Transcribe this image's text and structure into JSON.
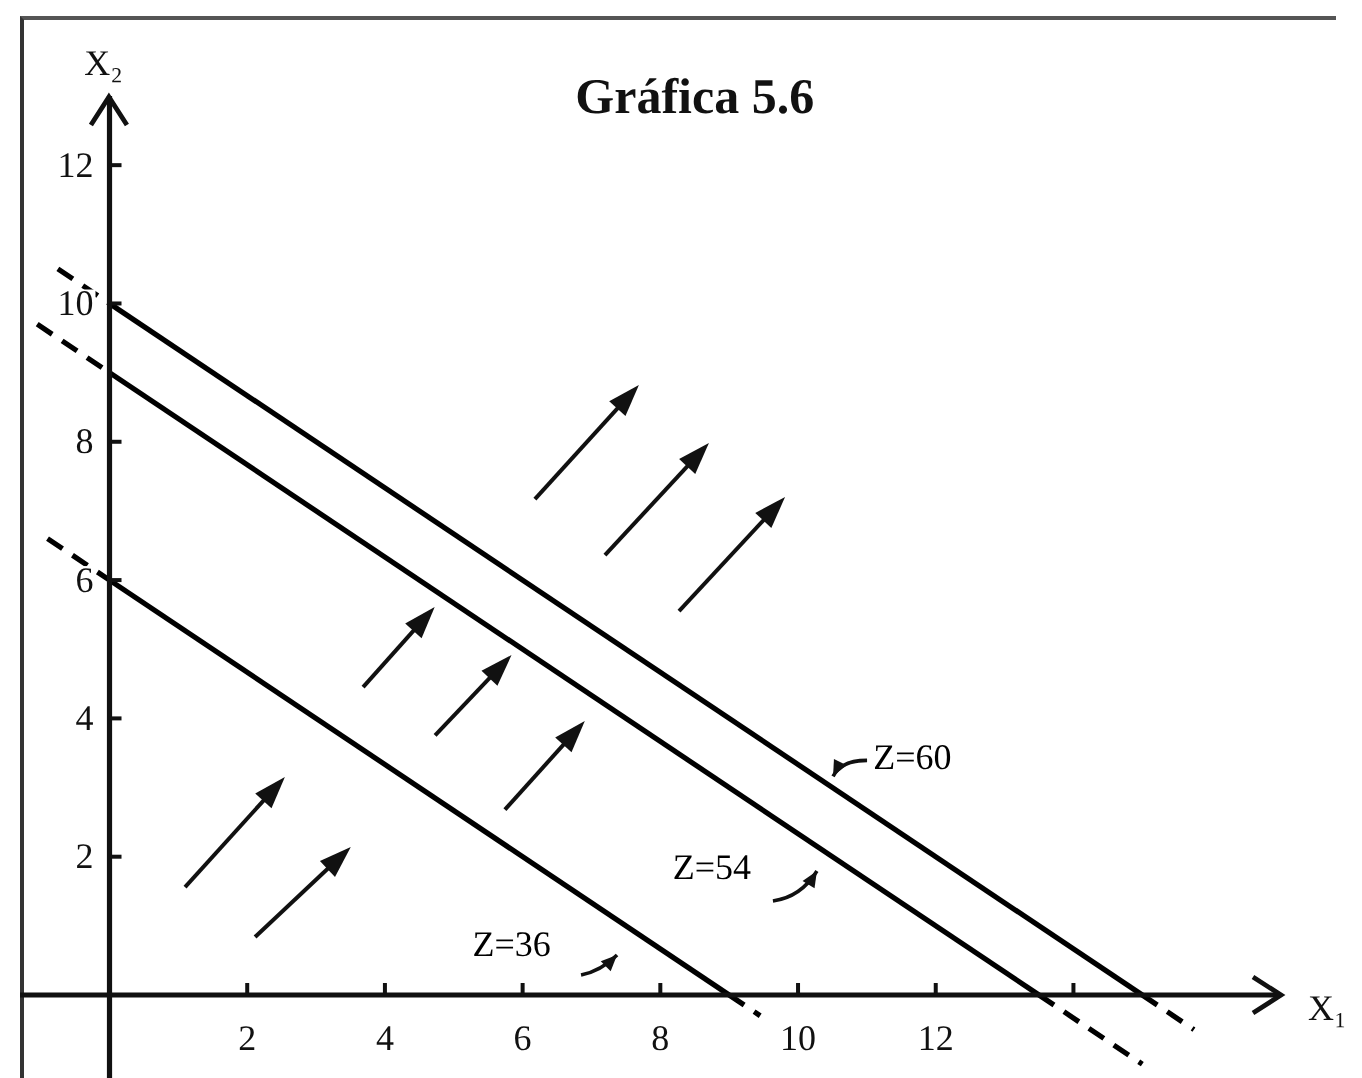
{
  "chart_data": {
    "type": "line",
    "title": "Gráfica 5.6",
    "xlabel": "X₁",
    "ylabel": "X₂",
    "series": [
      {
        "name": "Z=36",
        "color": "#000000",
        "x": [
          0,
          9
        ],
        "values": [
          6,
          0
        ]
      },
      {
        "name": "Z=54",
        "color": "#000000",
        "x": [
          0,
          13.5
        ],
        "values": [
          9,
          0
        ]
      },
      {
        "name": "Z=60",
        "color": "#000000",
        "x": [
          0,
          15
        ],
        "values": [
          10,
          0
        ]
      },
      {
        "color": "#000000",
        "line_style": "dashed",
        "x": [
          -0.9,
          0
        ],
        "values": [
          6.6,
          6
        ]
      },
      {
        "color": "#000000",
        "line_style": "dashed",
        "x": [
          9,
          9.45
        ],
        "values": [
          0,
          -0.3
        ]
      },
      {
        "color": "#000000",
        "line_style": "dashed",
        "x": [
          -1.05,
          0
        ],
        "values": [
          9.7,
          9
        ]
      },
      {
        "color": "#000000",
        "line_style": "dashed",
        "x": [
          13.5,
          15
        ],
        "values": [
          0,
          -1
        ]
      },
      {
        "color": "#000000",
        "line_style": "dashed",
        "x": [
          -0.75,
          0
        ],
        "values": [
          10.5,
          10
        ]
      },
      {
        "color": "#000000",
        "line_style": "dashed",
        "x": [
          15,
          15.75
        ],
        "values": [
          0,
          -0.5
        ]
      }
    ],
    "xlim": [
      -1.3,
      17
    ],
    "ylim": [
      -1.2,
      13
    ],
    "xticks": [
      2,
      4,
      6,
      8,
      10,
      12,
      {
        "value": 14,
        "label": null
      }
    ],
    "yticks": [
      2,
      4,
      6,
      8,
      10,
      12
    ],
    "line_style": "solid",
    "marker": "none",
    "legend": false,
    "grid": false
  }
}
